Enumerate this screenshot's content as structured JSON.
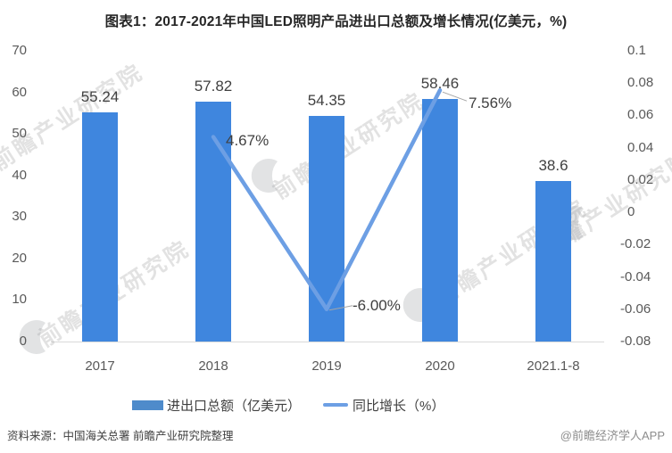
{
  "title": "图表1：2017-2021年中国LED照明产品进出口总额及增长情况(亿美元，%)",
  "chart_data": {
    "type": "bar+line",
    "categories": [
      "2017",
      "2018",
      "2019",
      "2020",
      "2021.1-8"
    ],
    "series": [
      {
        "name": "进出口总额（亿美元）",
        "type": "bar",
        "color": "#3F86DE",
        "values": [
          55.24,
          57.82,
          54.35,
          58.46,
          38.6
        ],
        "data_labels": [
          "55.24",
          "57.82",
          "54.35",
          "58.46",
          "38.6"
        ]
      },
      {
        "name": "同比增长（%）",
        "type": "line",
        "color": "#6D9FE4",
        "values": [
          null,
          0.0467,
          -0.06,
          0.0756,
          null
        ],
        "point_labels": [
          null,
          "4.67%",
          "-6.00%",
          "7.56%",
          null
        ]
      }
    ],
    "left_axis": {
      "ticks": [
        "70",
        "60",
        "50",
        "40",
        "30",
        "20",
        "10",
        "0"
      ],
      "min": 0,
      "max": 70
    },
    "right_axis": {
      "ticks": [
        "0.1",
        "0.08",
        "0.06",
        "0.04",
        "0.02",
        "0",
        "-0.02",
        "-0.04",
        "-0.06",
        "-0.08"
      ],
      "min": -0.08,
      "max": 0.1
    },
    "grid": false,
    "legend_position": "bottom"
  },
  "watermark": {
    "text": "前瞻产业研究院"
  },
  "footer": {
    "source": "资料来源：中国海关总署 前瞻产业研究院整理",
    "credit": "@前瞻经济学人APP"
  },
  "colors": {
    "bar": "#3F86DE",
    "line": "#6D9FE4",
    "legend_bar_swatch": "#4E8BCB",
    "axis_text": "#595959",
    "data_label_text": "#404040",
    "title_text": "#262626",
    "axis_line": "#D9D9D9",
    "leader_line": "#A6A6A6"
  }
}
